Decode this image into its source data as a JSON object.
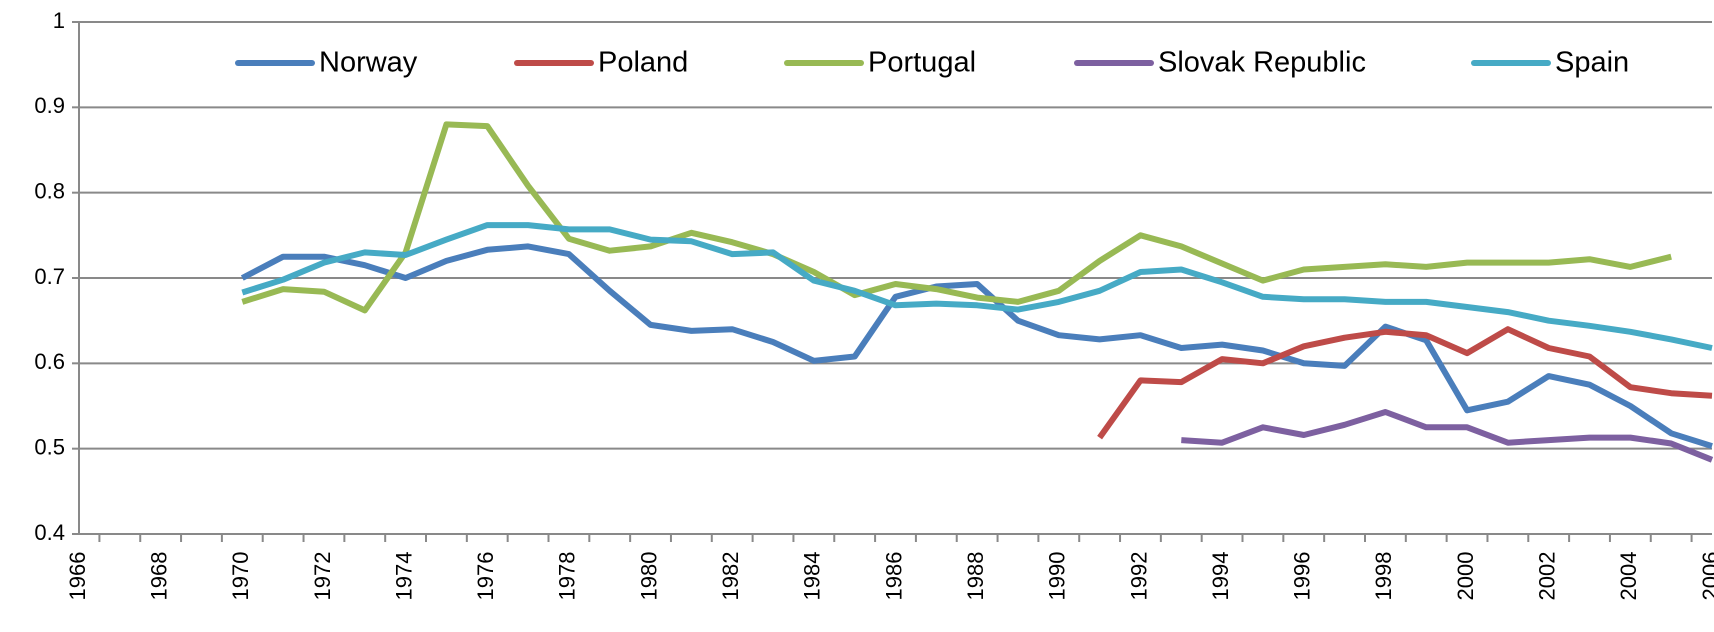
{
  "chart_data": {
    "type": "line",
    "categories": [
      "1966",
      null,
      "1968",
      null,
      "1970",
      null,
      "1972",
      null,
      "1974",
      null,
      "1976",
      null,
      "1978",
      null,
      "1980",
      null,
      "1982",
      null,
      "1984",
      null,
      "1986",
      null,
      "1988",
      null,
      "1990",
      null,
      "1992",
      null,
      "1994",
      null,
      "1996",
      null,
      "1998",
      null,
      "2000",
      null,
      "2002",
      null,
      "2004",
      null,
      "2006"
    ],
    "series": [
      {
        "name": "Norway",
        "color": "#4a7ebb",
        "values": [
          null,
          null,
          null,
          null,
          0.7,
          0.725,
          0.725,
          0.715,
          0.7,
          0.72,
          0.733,
          0.737,
          0.728,
          0.685,
          0.645,
          0.638,
          0.64,
          0.625,
          0.603,
          0.608,
          0.678,
          0.69,
          0.693,
          0.65,
          0.633,
          0.628,
          0.633,
          0.618,
          0.622,
          0.615,
          0.6,
          0.597,
          0.643,
          0.627,
          0.545,
          0.555,
          0.585,
          0.575,
          0.55,
          0.518,
          0.503
        ]
      },
      {
        "name": "Poland",
        "color": "#be4b48",
        "values": [
          null,
          null,
          null,
          null,
          null,
          null,
          null,
          null,
          null,
          null,
          null,
          null,
          null,
          null,
          null,
          null,
          null,
          null,
          null,
          null,
          null,
          null,
          null,
          null,
          null,
          0.513,
          0.58,
          0.578,
          0.605,
          0.6,
          0.62,
          0.63,
          0.637,
          0.633,
          0.612,
          0.64,
          0.618,
          0.608,
          0.572,
          0.565,
          0.562
        ]
      },
      {
        "name": "Portugal",
        "color": "#98b954",
        "values": [
          null,
          null,
          null,
          null,
          0.672,
          0.687,
          0.684,
          0.662,
          0.73,
          0.88,
          0.878,
          0.808,
          0.746,
          0.732,
          0.737,
          0.753,
          0.742,
          0.728,
          0.707,
          0.68,
          0.693,
          0.687,
          0.677,
          0.672,
          0.685,
          0.72,
          0.75,
          0.737,
          0.717,
          0.697,
          0.71,
          0.713,
          0.716,
          0.713,
          0.718,
          0.718,
          0.718,
          0.722,
          0.713,
          0.725,
          null
        ]
      },
      {
        "name": "Slovak Republic",
        "color": "#7d60a0",
        "values": [
          null,
          null,
          null,
          null,
          null,
          null,
          null,
          null,
          null,
          null,
          null,
          null,
          null,
          null,
          null,
          null,
          null,
          null,
          null,
          null,
          null,
          null,
          null,
          null,
          null,
          null,
          null,
          0.51,
          0.507,
          0.525,
          0.516,
          0.528,
          0.543,
          0.525,
          0.525,
          0.507,
          0.51,
          0.513,
          0.513,
          0.506,
          0.487
        ]
      },
      {
        "name": "Spain",
        "color": "#46aac5",
        "values": [
          null,
          null,
          null,
          null,
          0.683,
          0.698,
          0.718,
          0.73,
          0.727,
          0.745,
          0.762,
          0.762,
          0.757,
          0.757,
          0.745,
          0.743,
          0.728,
          0.73,
          0.697,
          0.685,
          0.668,
          0.67,
          0.668,
          0.663,
          0.672,
          0.685,
          0.707,
          0.71,
          0.695,
          0.678,
          0.675,
          0.675,
          0.672,
          0.672,
          0.666,
          0.66,
          0.65,
          0.644,
          0.637,
          0.628,
          0.618
        ]
      }
    ],
    "ylim": [
      0.4,
      1
    ],
    "yticks": [
      0.4,
      0.5,
      0.6,
      0.7,
      0.8,
      0.9,
      1
    ],
    "grid": true,
    "legend": "top"
  }
}
